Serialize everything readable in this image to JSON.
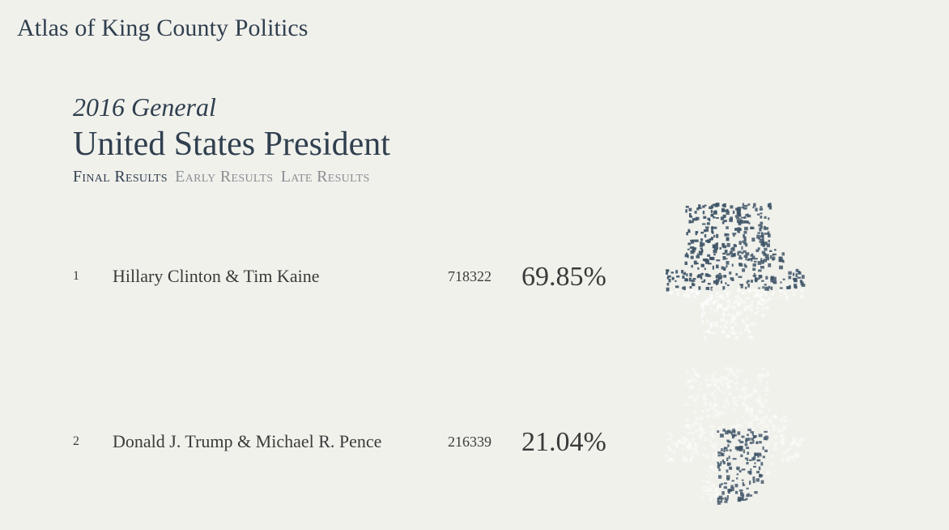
{
  "site": {
    "title": "Atlas of King County Politics"
  },
  "race": {
    "election": "2016 General",
    "title": "United States President",
    "tabs": [
      {
        "label": "Final Results",
        "active": true
      },
      {
        "label": "Early Results",
        "active": false
      },
      {
        "label": "Late Results",
        "active": false
      }
    ]
  },
  "candidates": [
    {
      "rank": "1",
      "name": "Hillary Clinton & Tim Kaine",
      "votes": "718322",
      "percent": "69.85%"
    },
    {
      "rank": "2",
      "name": "Donald J. Trump & Michael R. Pence",
      "votes": "216339",
      "percent": "21.04%"
    }
  ],
  "colors": {
    "title": "#2f3f4e",
    "inactive_tab": "#8a8f93",
    "map_fill": "#3e5366",
    "background": "#f1f1ec"
  }
}
